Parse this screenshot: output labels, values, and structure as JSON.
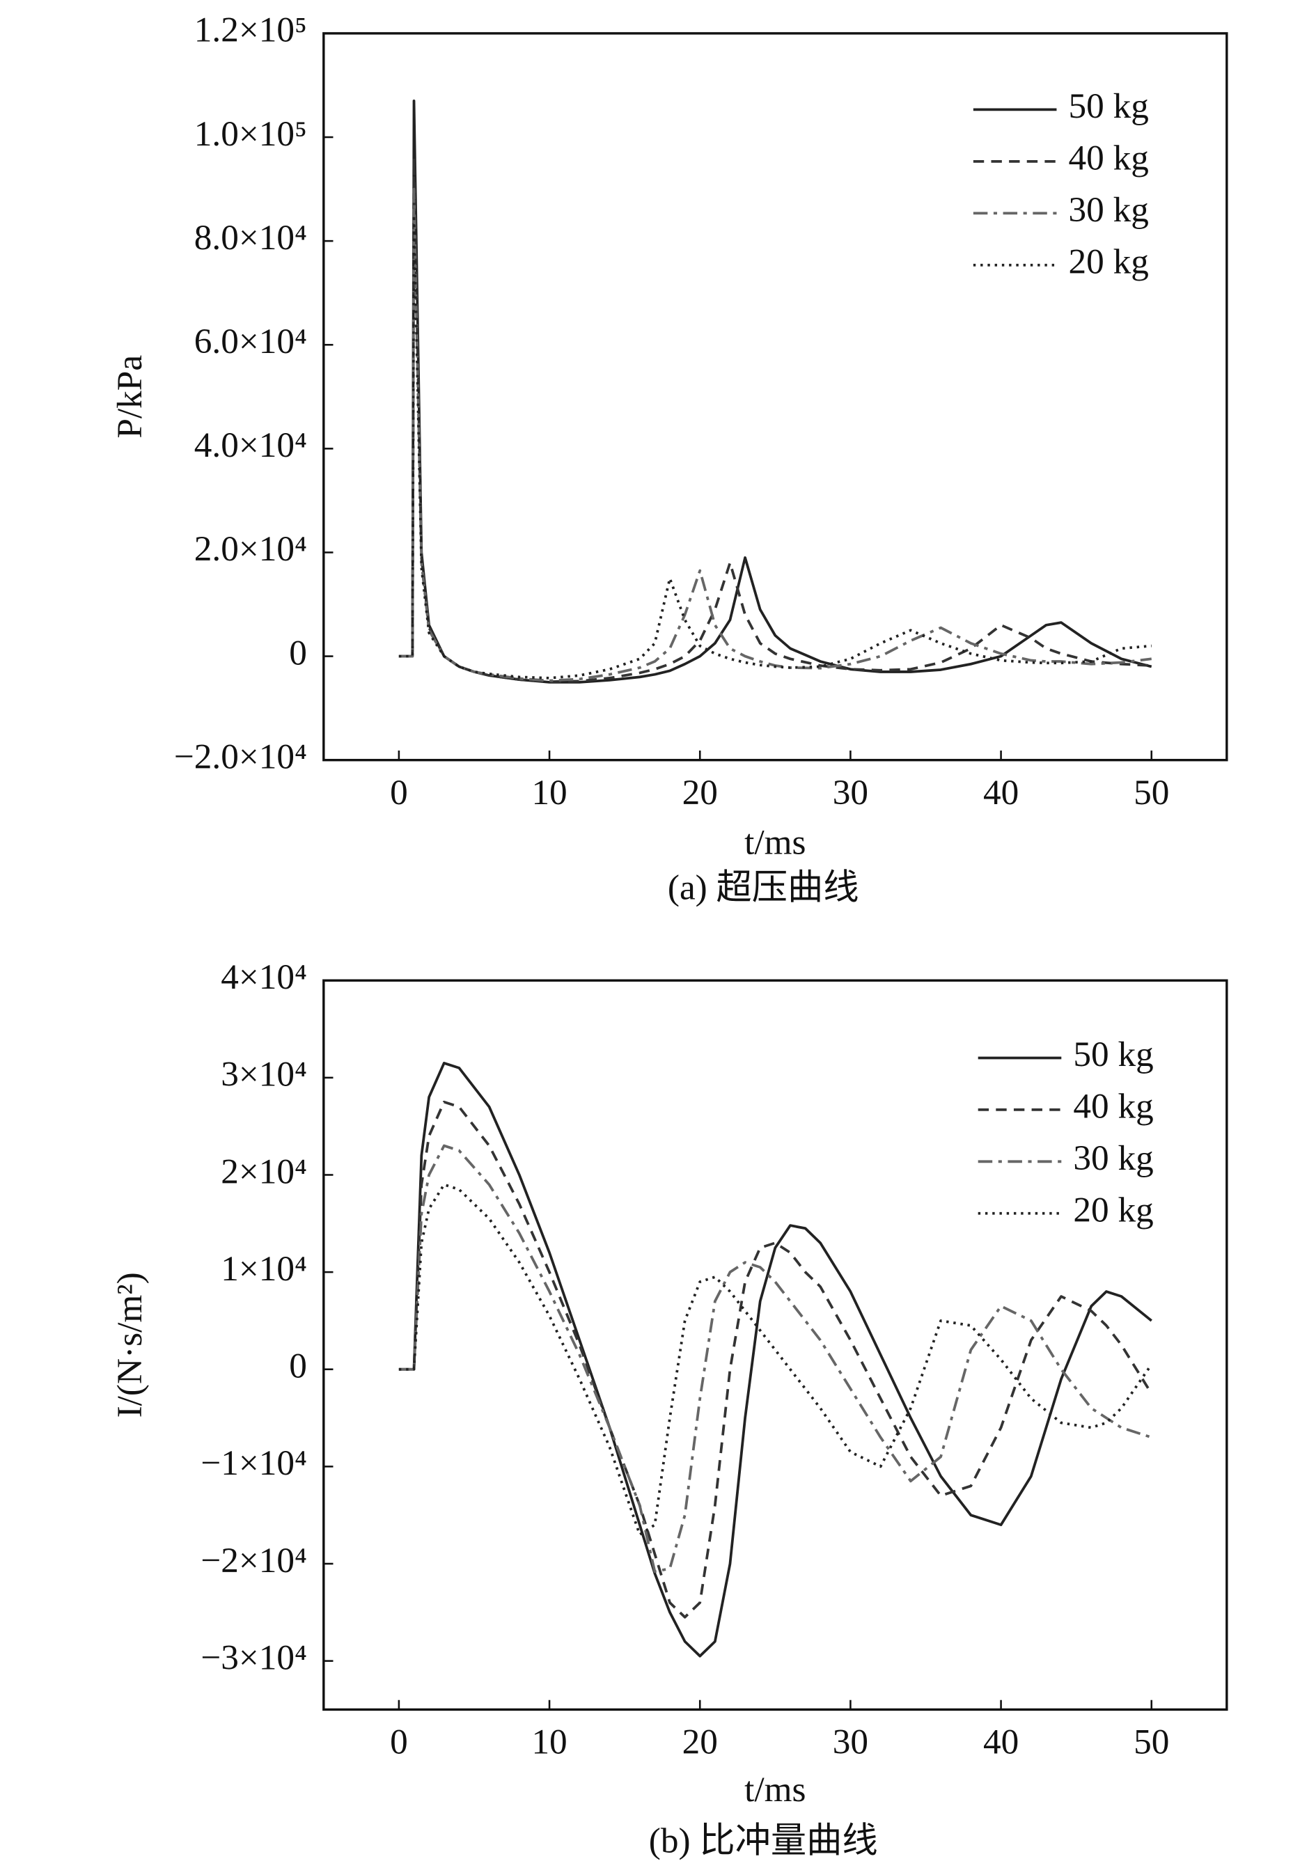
{
  "chart_data": [
    {
      "type": "line",
      "title": "(a) 超压曲线",
      "x_label": "t/ms",
      "y_label": "P/kPa",
      "xlim": [
        -5,
        55
      ],
      "xticks": [
        0,
        10,
        20,
        30,
        40,
        50
      ],
      "ylim": [
        -20000,
        120000
      ],
      "yticks": [
        {
          "value": -20000,
          "label": "−2.0×10⁴"
        },
        0,
        {
          "value": 20000,
          "label": "2.0×10⁴"
        },
        {
          "value": 40000,
          "label": "4.0×10⁴"
        },
        {
          "value": 60000,
          "label": "6.0×10⁴"
        },
        {
          "value": 80000,
          "label": "8.0×10⁴"
        },
        {
          "value": 100000,
          "label": "1.0×10⁵"
        },
        {
          "value": 120000,
          "label": "1.2×10⁵"
        }
      ],
      "grid": false,
      "legend": "upper right",
      "x": [
        0,
        0.9,
        1.0,
        1.5,
        2,
        3,
        4,
        5,
        6,
        8,
        10,
        12,
        14,
        16,
        17,
        18,
        19,
        20,
        21,
        22,
        23,
        24,
        25,
        26,
        28,
        30,
        32,
        34,
        36,
        38,
        40,
        42,
        43,
        44,
        46,
        48,
        50
      ],
      "series": [
        {
          "name": "50 kg",
          "color": "#222222",
          "dash": "solid",
          "values": [
            0,
            0,
            107000,
            20000,
            6000,
            0,
            -2000,
            -3000,
            -3700,
            -4500,
            -5000,
            -5000,
            -4600,
            -4000,
            -3500,
            -2800,
            -1500,
            0,
            2500,
            7000,
            19000,
            9000,
            4000,
            1500,
            -1000,
            -2500,
            -3000,
            -3000,
            -2600,
            -1500,
            0,
            4000,
            6000,
            6500,
            2500,
            -500,
            -2000
          ]
        },
        {
          "name": "40 kg",
          "color": "#333333",
          "dash": "dashed",
          "values": [
            0,
            0,
            96000,
            19000,
            5500,
            0,
            -2000,
            -3000,
            -3700,
            -4500,
            -4900,
            -4800,
            -4200,
            -3200,
            -2500,
            -1500,
            0,
            3000,
            9000,
            18000,
            8000,
            2500,
            500,
            -500,
            -1800,
            -2500,
            -2700,
            -2500,
            -1200,
            1500,
            6000,
            3500,
            1500,
            500,
            -1000,
            -1500,
            -1800
          ]
        },
        {
          "name": "30 kg",
          "color": "#666666",
          "dash": "dashdot",
          "values": [
            0,
            0,
            90000,
            18000,
            5000,
            0,
            -2000,
            -3000,
            -3500,
            -4300,
            -4700,
            -4400,
            -3500,
            -2200,
            -1000,
            1500,
            8000,
            16500,
            6000,
            1500,
            0,
            -1000,
            -1800,
            -2200,
            -2300,
            -1500,
            0,
            3000,
            5500,
            2500,
            500,
            -800,
            -1000,
            -1000,
            -1500,
            -1200,
            -500
          ]
        },
        {
          "name": "20 kg",
          "color": "#222222",
          "dash": "dotted",
          "values": [
            0,
            0,
            85000,
            17000,
            4500,
            0,
            -2000,
            -3000,
            -3400,
            -4000,
            -4200,
            -3700,
            -2500,
            -500,
            2500,
            15000,
            7000,
            2000,
            500,
            -500,
            -1200,
            -1700,
            -2000,
            -2200,
            -2000,
            -500,
            2500,
            5000,
            2500,
            500,
            -800,
            -1200,
            -1300,
            -1300,
            -1000,
            1500,
            2000
          ]
        }
      ]
    },
    {
      "type": "line",
      "title": "(b) 比冲量曲线",
      "x_label": "t/ms",
      "y_label": "I/(N·s/m²)",
      "xlim": [
        -5,
        55
      ],
      "xticks": [
        0,
        10,
        20,
        30,
        40,
        50
      ],
      "ylim": [
        -35000,
        40000
      ],
      "yticks": [
        {
          "value": -30000,
          "label": "−3×10⁴"
        },
        {
          "value": -20000,
          "label": "−2×10⁴"
        },
        {
          "value": -10000,
          "label": "−1×10⁴"
        },
        0,
        {
          "value": 10000,
          "label": "1×10⁴"
        },
        {
          "value": 20000,
          "label": "2×10⁴"
        },
        {
          "value": 30000,
          "label": "3×10⁴"
        },
        {
          "value": 40000,
          "label": "4×10⁴"
        }
      ],
      "grid": false,
      "legend": "upper right",
      "x": [
        0,
        0.9,
        1.0,
        1.5,
        2,
        3,
        4,
        6,
        8,
        10,
        12,
        14,
        16,
        17,
        18,
        19,
        20,
        21,
        22,
        23,
        24,
        25,
        26,
        27,
        28,
        30,
        32,
        34,
        36,
        38,
        40,
        42,
        44,
        46,
        47,
        48,
        50
      ],
      "series": [
        {
          "name": "50 kg",
          "color": "#222222",
          "dash": "solid",
          "values": [
            0,
            0,
            0,
            22000,
            28000,
            31500,
            31000,
            27000,
            20000,
            12000,
            3000,
            -6000,
            -16000,
            -21000,
            -25000,
            -28000,
            -29500,
            -28000,
            -20000,
            -5000,
            7000,
            12500,
            14800,
            14500,
            13000,
            8000,
            1500,
            -5000,
            -11000,
            -15000,
            -16000,
            -11000,
            -1000,
            6500,
            8000,
            7500,
            5000
          ]
        },
        {
          "name": "40 kg",
          "color": "#333333",
          "dash": "dashed",
          "values": [
            0,
            0,
            0,
            19000,
            24000,
            27500,
            27000,
            23000,
            17000,
            10000,
            2500,
            -6000,
            -14000,
            -19000,
            -24000,
            -25500,
            -24000,
            -14000,
            0,
            9000,
            12500,
            13000,
            12000,
            10000,
            8500,
            3000,
            -3000,
            -9000,
            -13000,
            -12000,
            -6000,
            3000,
            7500,
            6000,
            4500,
            2500,
            -2500
          ]
        },
        {
          "name": "30 kg",
          "color": "#666666",
          "dash": "dashdot",
          "values": [
            0,
            0,
            0,
            16000,
            20000,
            23000,
            22500,
            19000,
            14000,
            8000,
            1500,
            -6000,
            -14000,
            -20800,
            -20500,
            -15000,
            -3000,
            7000,
            10000,
            11000,
            10500,
            9000,
            7000,
            5000,
            3000,
            -2000,
            -7000,
            -11500,
            -9000,
            2000,
            6500,
            5000,
            0,
            -4000,
            -5000,
            -6000,
            -7000
          ]
        },
        {
          "name": "20 kg",
          "color": "#222222",
          "dash": "dotted",
          "values": [
            0,
            0,
            0,
            13000,
            16500,
            19000,
            18500,
            15500,
            11000,
            5500,
            -1000,
            -8000,
            -17000,
            -16000,
            -5000,
            5000,
            9000,
            9500,
            8000,
            6000,
            4000,
            2000,
            0,
            -2000,
            -4000,
            -8500,
            -10000,
            -4000,
            5000,
            4500,
            1000,
            -3000,
            -5500,
            -6000,
            -5500,
            -4000,
            500
          ]
        }
      ]
    }
  ]
}
